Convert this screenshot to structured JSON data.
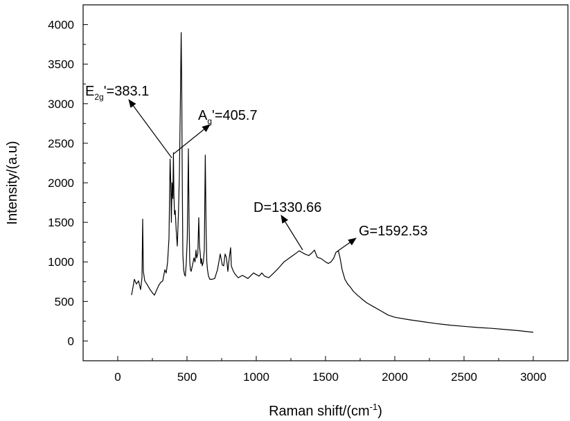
{
  "chart_data": {
    "type": "line",
    "title": "",
    "xlabel": "Raman shift/(cm",
    "xlabel_sup": "-1",
    "xlabel_tail": ")",
    "ylabel": "Intensity/(a.u)",
    "xlim": [
      -250,
      3250
    ],
    "ylim": [
      -250,
      4250
    ],
    "grid": false,
    "legend": "none",
    "line_color": "#000000",
    "x_ticks": [
      {
        "value": 0,
        "label": "0"
      },
      {
        "value": 500,
        "label": "500"
      },
      {
        "value": 1000,
        "label": "1000"
      },
      {
        "value": 1500,
        "label": "1500"
      },
      {
        "value": 2000,
        "label": "2000"
      },
      {
        "value": 2500,
        "label": "2500"
      },
      {
        "value": 3000,
        "label": "3000"
      }
    ],
    "y_ticks": [
      {
        "value": 0,
        "label": "0"
      },
      {
        "value": 500,
        "label": "500"
      },
      {
        "value": 1000,
        "label": "1000"
      },
      {
        "value": 1500,
        "label": "1500"
      },
      {
        "value": 2000,
        "label": "2000"
      },
      {
        "value": 2500,
        "label": "2500"
      },
      {
        "value": 3000,
        "label": "3000"
      },
      {
        "value": 3500,
        "label": "3500"
      },
      {
        "value": 4000,
        "label": "4000"
      }
    ],
    "series": [
      {
        "x": [
          100,
          120,
          135,
          150,
          165,
          175,
          180,
          185,
          195,
          210,
          230,
          250,
          265,
          280,
          295,
          310,
          325,
          340,
          350,
          360,
          370,
          378,
          383,
          387,
          392,
          398,
          402,
          405.7,
          410,
          415,
          422,
          430,
          438,
          445,
          452,
          458,
          462,
          466,
          470,
          476,
          482,
          488,
          495,
          502,
          510,
          515,
          520,
          525,
          530,
          540,
          550,
          558,
          565,
          570,
          578,
          585,
          590,
          596,
          600,
          605,
          610,
          618,
          625,
          632,
          638,
          643,
          648,
          655,
          665,
          680,
          700,
          720,
          740,
          755,
          765,
          775,
          785,
          795,
          805,
          815,
          820,
          830,
          845,
          870,
          900,
          940,
          980,
          1020,
          1040,
          1060,
          1090,
          1120,
          1160,
          1200,
          1240,
          1280,
          1310,
          1330.66,
          1350,
          1380,
          1405,
          1420,
          1440,
          1470,
          1500,
          1520,
          1540,
          1560,
          1575,
          1592.53,
          1605,
          1620,
          1640,
          1660,
          1680,
          1700,
          1730,
          1770,
          1800,
          1850,
          1900,
          1950,
          2000,
          2100,
          2200,
          2300,
          2400,
          2500,
          2600,
          2700,
          2800,
          2900,
          3000
        ],
        "y": [
          580,
          780,
          720,
          760,
          650,
          800,
          1540,
          880,
          760,
          720,
          660,
          610,
          580,
          640,
          700,
          740,
          760,
          900,
          860,
          1000,
          1300,
          2300,
          2000,
          1500,
          2000,
          1800,
          2380,
          1850,
          1600,
          1650,
          1400,
          1200,
          1600,
          2100,
          3000,
          3900,
          3200,
          2000,
          1100,
          900,
          840,
          820,
          1000,
          1300,
          2430,
          1500,
          1000,
          900,
          880,
          960,
          1050,
          1000,
          1150,
          1050,
          1100,
          1560,
          1200,
          1100,
          980,
          1040,
          950,
          1000,
          1150,
          2350,
          1400,
          1000,
          900,
          820,
          780,
          780,
          790,
          900,
          1100,
          960,
          950,
          1100,
          1050,
          880,
          1050,
          1180,
          950,
          900,
          850,
          800,
          830,
          790,
          860,
          820,
          860,
          820,
          800,
          850,
          920,
          1000,
          1050,
          1100,
          1140,
          1120,
          1100,
          1080,
          1120,
          1150,
          1060,
          1040,
          1000,
          980,
          1000,
          1050,
          1120,
          1140,
          1050,
          900,
          780,
          720,
          680,
          630,
          580,
          520,
          480,
          430,
          380,
          330,
          300,
          270,
          245,
          220,
          200,
          185,
          170,
          160,
          145,
          130,
          110
        ]
      }
    ],
    "annotations": [
      {
        "main": "E",
        "sub": "2g",
        "rest": "'=383.1",
        "x": 383.1,
        "y": 2300
      },
      {
        "main": "A",
        "sub": "g",
        "rest": "'=405.7",
        "x": 405.7,
        "y": 2380
      },
      {
        "main": "D=1330.66",
        "sub": "",
        "rest": "",
        "x": 1330.66,
        "y": 1140
      },
      {
        "main": "G=1592.53",
        "sub": "",
        "rest": "",
        "x": 1592.53,
        "y": 1140
      }
    ]
  }
}
